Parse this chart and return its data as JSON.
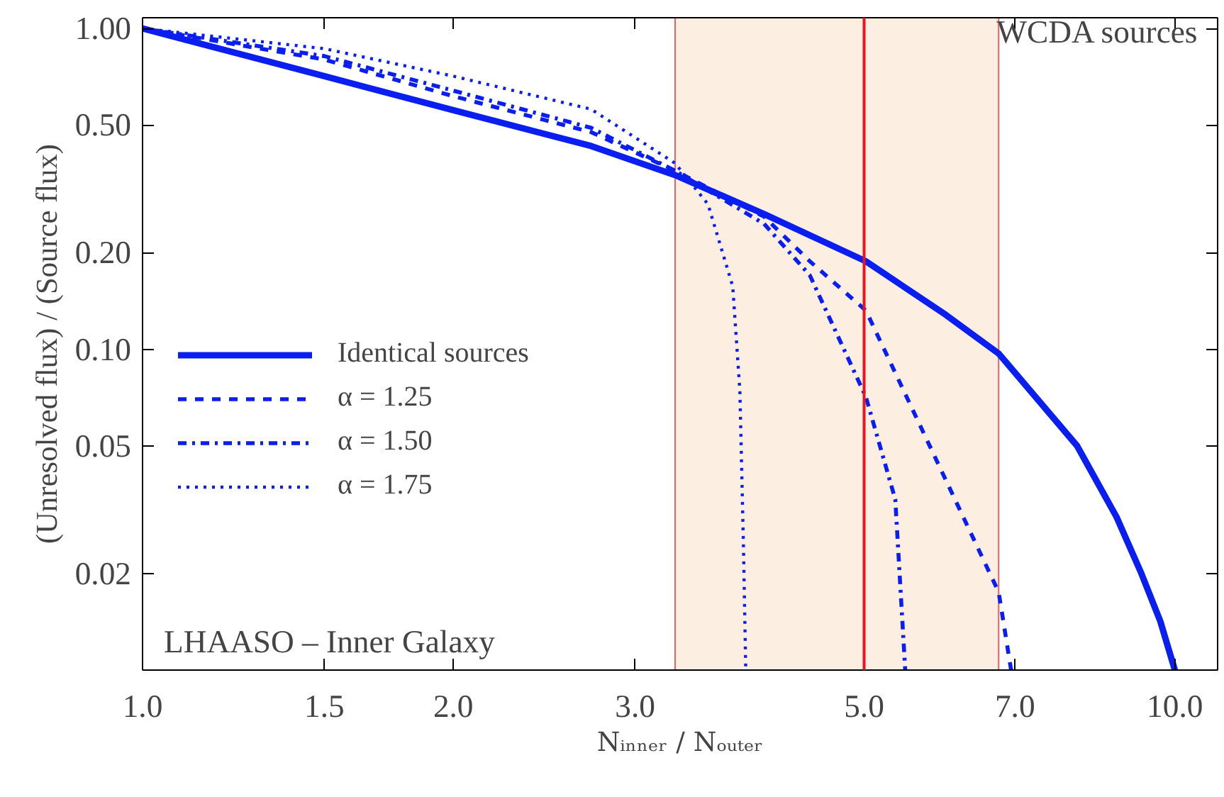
{
  "chart_data": {
    "type": "line",
    "xlabel": "Nᵢₙₙₑᵣ / Nₒᵤₜₑᵣ",
    "ylabel": "(Unresolved flux) / (Source flux)",
    "log": "xy",
    "grid": false,
    "legend": "left",
    "marker": "none",
    "xlim": [
      1.0,
      11.0
    ],
    "ylim": [
      0.01,
      1.08
    ],
    "xticks": [
      {
        "value": 1,
        "label": "1.0"
      },
      {
        "value": 1.5,
        "label": "1.5"
      },
      {
        "value": 2,
        "label": "2.0"
      },
      {
        "value": 3,
        "label": "3.0"
      },
      {
        "value": 5,
        "label": "5.0"
      },
      {
        "value": 7,
        "label": "7.0"
      },
      {
        "value": 10,
        "label": "10.0"
      }
    ],
    "yticks": [
      {
        "value": 1,
        "label": "1.00"
      },
      {
        "value": 0.5,
        "label": "0.50"
      },
      {
        "value": 0.2,
        "label": "0.20"
      },
      {
        "value": 0.1,
        "label": "0.10"
      },
      0.05,
      0.02
    ],
    "series": [
      {
        "name": "Identical sources",
        "color": "#0a1ef0",
        "line_style": "solid",
        "x": [
          1.0,
          1.5,
          2.0,
          2.72,
          3.28,
          4.0,
          5.02,
          6.0,
          6.75,
          8.04,
          8.78,
          9.28,
          9.68,
          10.0
        ],
        "values": [
          1.0,
          0.71,
          0.556,
          0.43,
          0.349,
          0.264,
          0.188,
          0.128,
          0.097,
          0.05,
          0.03,
          0.02,
          0.0142,
          0.01
        ]
      },
      {
        "name": "α = 1.25",
        "color": "#0a1ef0",
        "line_style": "dashed",
        "x": [
          1.0,
          1.5,
          2.0,
          2.72,
          3.28,
          4.0,
          4.43,
          5.02,
          6.75,
          6.94
        ],
        "values": [
          1.0,
          0.8,
          0.615,
          0.475,
          0.36,
          0.259,
          0.188,
          0.132,
          0.0175,
          0.01
        ]
      },
      {
        "name": "α = 1.50",
        "color": "#0a1ef0",
        "line_style": "dashdot",
        "x": [
          1.0,
          1.5,
          2.0,
          2.72,
          3.28,
          4.0,
          4.43,
          5.02,
          5.36,
          5.48
        ],
        "values": [
          1.0,
          0.82,
          0.64,
          0.49,
          0.36,
          0.246,
          0.17,
          0.071,
          0.034,
          0.01
        ]
      },
      {
        "name": "α = 1.75",
        "color": "#0a1ef0",
        "line_style": "dotted",
        "x": [
          1.0,
          1.5,
          2.0,
          2.72,
          3.28,
          3.53,
          3.73,
          3.79,
          3.82,
          3.84
        ],
        "values": [
          1.0,
          0.865,
          0.71,
          0.56,
          0.38,
          0.283,
          0.157,
          0.074,
          0.0246,
          0.01
        ]
      }
    ],
    "bands": [
      {
        "axis": "x",
        "from": 3.28,
        "to": 6.75,
        "label": null,
        "color": "#fdeee2"
      }
    ],
    "ref_lines": [
      {
        "axis": "x",
        "value": 5.0,
        "label": null,
        "color": "#e8141e",
        "line_style": "solid"
      }
    ],
    "annotations": [
      "WCDA sources",
      "LHAASO – Inner Galaxy"
    ]
  }
}
